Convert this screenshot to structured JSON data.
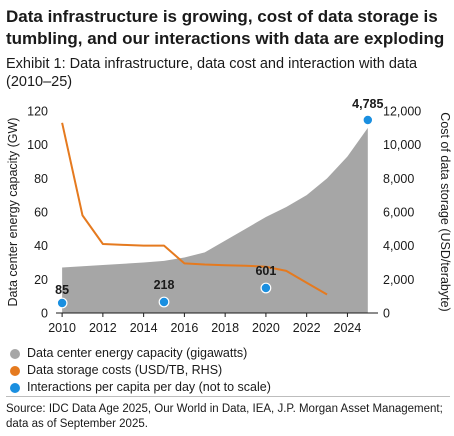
{
  "headline": "Data infrastructure is growing, cost of data storage is tumbling, and our interactions with data are exploding",
  "chart_data": {
    "type": "area",
    "title": "Exhibit 1: Data infrastructure, data cost and interaction with data (2010–25)",
    "xlabel": "",
    "ylabel": "Data center energy capacity (GW)",
    "y2label": "Cost of data storage (USD/terabyte)",
    "xlim": [
      2009.7,
      2025.5
    ],
    "ylim": [
      0,
      120
    ],
    "y2lim": [
      0,
      12000
    ],
    "x_ticks": [
      2010,
      2012,
      2014,
      2016,
      2018,
      2020,
      2022,
      2024
    ],
    "y_ticks": [
      0,
      20,
      40,
      60,
      80,
      100,
      120
    ],
    "y2_ticks": [
      0,
      2000,
      4000,
      6000,
      8000,
      10000,
      12000
    ],
    "x_tick_labels": [
      "2010",
      "2012",
      "2014",
      "2016",
      "2018",
      "2020",
      "2022",
      "2024"
    ],
    "y_tick_labels": [
      "0",
      "20",
      "40",
      "60",
      "80",
      "100",
      "120"
    ],
    "y2_tick_labels": [
      "0",
      "2,000",
      "4,000",
      "6,000",
      "8,000",
      "10,000",
      "12,000"
    ],
    "grid": false,
    "legend_position": "bottom",
    "series": [
      {
        "name": "Data center energy capacity (gigawatts)",
        "kind": "area",
        "axis": "left",
        "color": "#a6a6a6",
        "points": [
          [
            2010,
            27
          ],
          [
            2012,
            28.5
          ],
          [
            2014,
            30
          ],
          [
            2015,
            31
          ],
          [
            2016,
            33
          ],
          [
            2017,
            36
          ],
          [
            2018,
            43
          ],
          [
            2019,
            50
          ],
          [
            2020,
            57
          ],
          [
            2021,
            63
          ],
          [
            2022,
            70
          ],
          [
            2023,
            80
          ],
          [
            2024,
            93
          ],
          [
            2025,
            110
          ]
        ]
      },
      {
        "name": "Data storage costs (USD/TB, RHS)",
        "kind": "line",
        "axis": "right",
        "color": "#e57a1f",
        "points": [
          [
            2010,
            11300
          ],
          [
            2011,
            5800
          ],
          [
            2012,
            4100
          ],
          [
            2013,
            4050
          ],
          [
            2014,
            4000
          ],
          [
            2015,
            4000
          ],
          [
            2016,
            2950
          ],
          [
            2017,
            2880
          ],
          [
            2018,
            2840
          ],
          [
            2019,
            2810
          ],
          [
            2020,
            2750
          ],
          [
            2021,
            2500
          ],
          [
            2022,
            1800
          ],
          [
            2023,
            1100
          ]
        ]
      },
      {
        "name": "Interactions per capita per day (not to scale)",
        "kind": "scatter",
        "axis": "none",
        "color": "#1a8fe0",
        "points": [
          [
            2010,
            85
          ],
          [
            2015,
            218
          ],
          [
            2020,
            601
          ],
          [
            2025,
            4785
          ]
        ],
        "data_labels": [
          "85",
          "218",
          "601",
          "4,785"
        ]
      }
    ]
  },
  "source": "Source: IDC Data Age 2025, Our World in Data, IEA, J.P. Morgan Asset Management; data as of September 2025."
}
